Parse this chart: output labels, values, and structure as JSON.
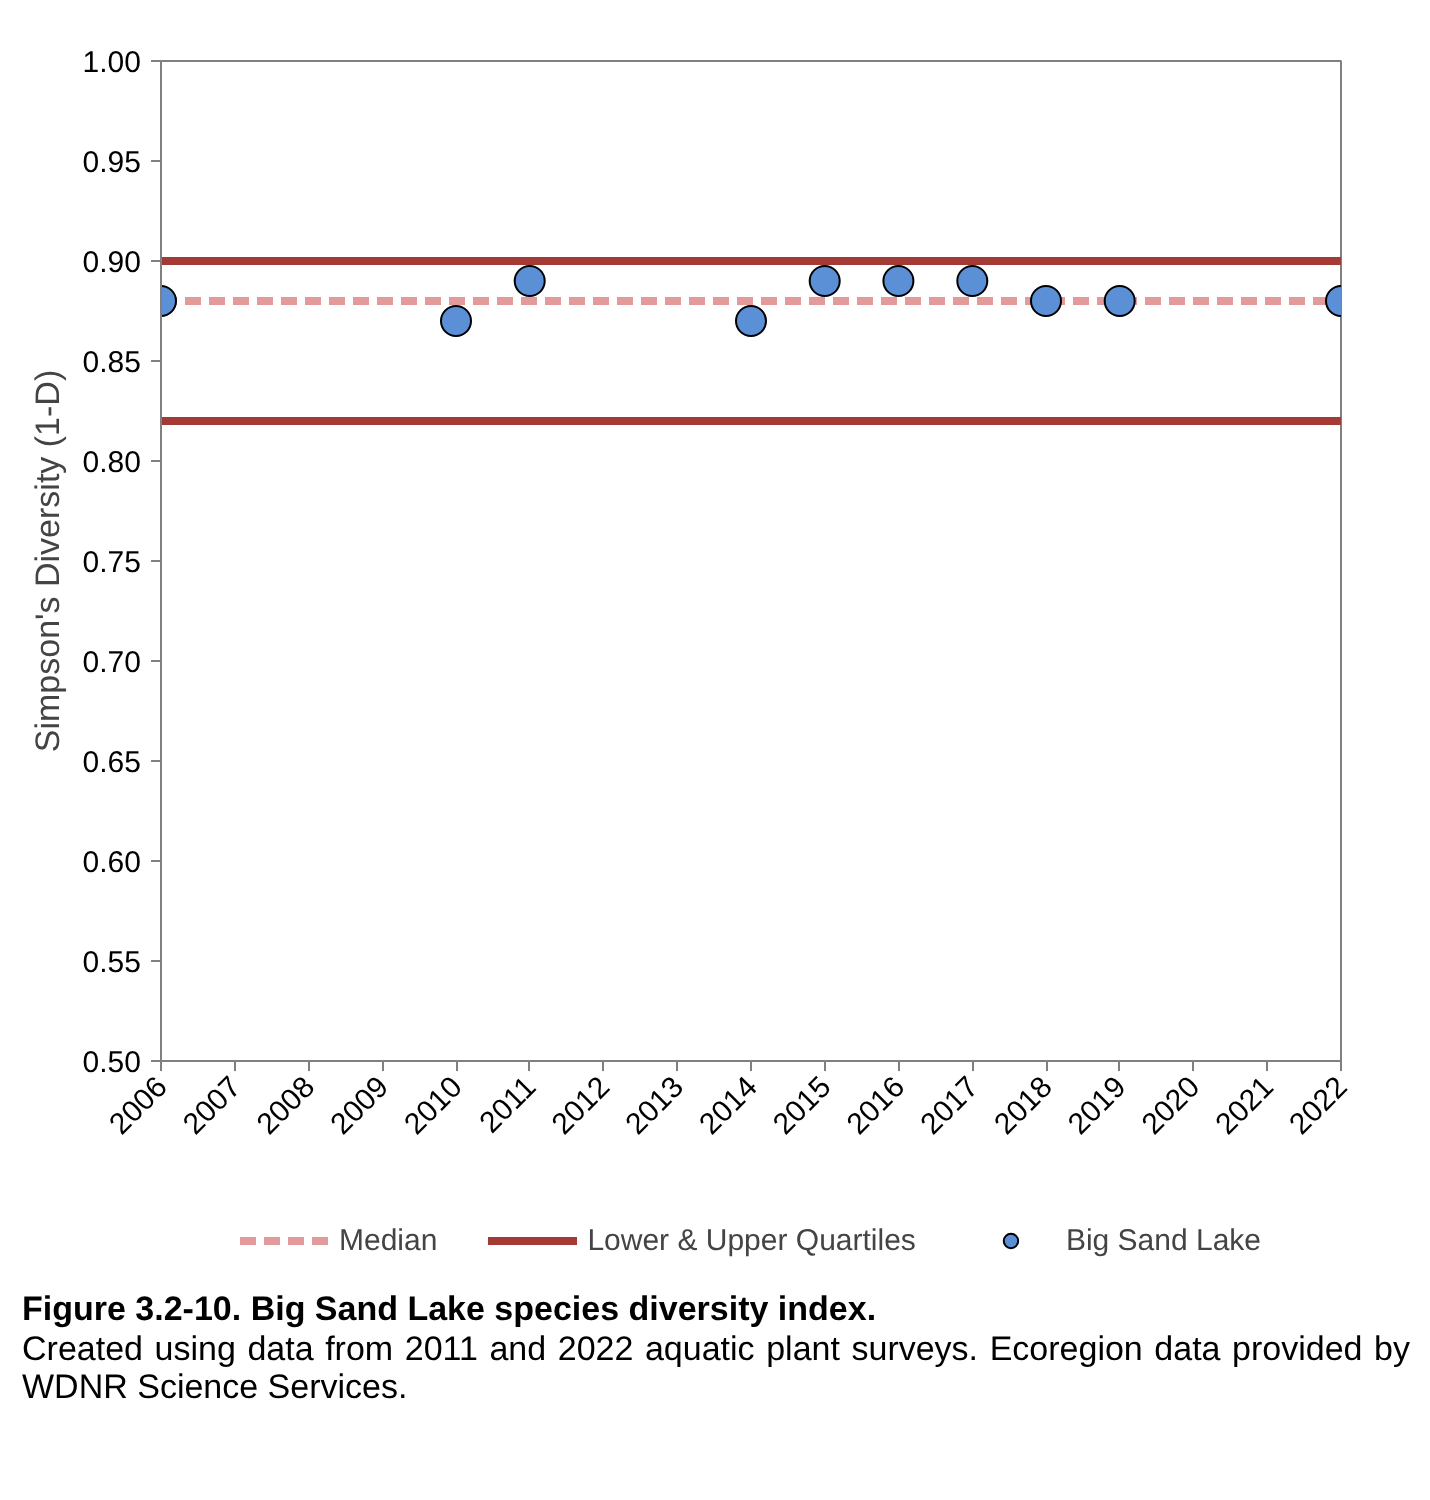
{
  "chart_data": {
    "type": "scatter",
    "title": "Figure 3.2-10.  Big Sand Lake species diversity index.",
    "ylabel": "Simpson's Diversity (1-D)",
    "series": [
      {
        "name": "Big Sand Lake",
        "color": "#5b8fd6",
        "x": [
          "2006",
          "2010",
          "2011",
          "2014",
          "2015",
          "2016",
          "2017",
          "2018",
          "2019",
          "2022"
        ],
        "values": [
          0.88,
          0.87,
          0.89,
          0.87,
          0.89,
          0.89,
          0.89,
          0.88,
          0.88,
          0.88
        ]
      }
    ],
    "ref_lines": [
      {
        "axis": "y",
        "value": 0.88,
        "label": "Median",
        "color": "#e39a9a",
        "line_style": "dashed"
      },
      {
        "axis": "y",
        "value": 0.82,
        "label": "Lower & Upper Quartiles",
        "color": "#a33a36",
        "line_style": "solid"
      },
      {
        "axis": "y",
        "value": 0.9,
        "color": "#a33a36",
        "line_style": "solid"
      }
    ],
    "xlim": [
      "2006",
      "2022"
    ],
    "xticks": [
      "2006",
      "2007",
      "2008",
      "2009",
      "2010",
      "2011",
      "2012",
      "2013",
      "2014",
      "2015",
      "2016",
      "2017",
      "2018",
      "2019",
      "2020",
      "2021",
      "2022"
    ],
    "ylim": [
      0.5,
      1.0
    ],
    "yticks": [
      {
        "value": 0.5,
        "label": "0.50"
      },
      {
        "value": 0.55,
        "label": "0.55"
      },
      {
        "value": 0.6,
        "label": "0.60"
      },
      {
        "value": 0.65,
        "label": "0.65"
      },
      {
        "value": 0.7,
        "label": "0.70"
      },
      {
        "value": 0.75,
        "label": "0.75"
      },
      {
        "value": 0.8,
        "label": "0.80"
      },
      {
        "value": 0.85,
        "label": "0.85"
      },
      {
        "value": 0.9,
        "label": "0.90"
      },
      {
        "value": 0.95,
        "label": "0.95"
      },
      {
        "value": 1.0,
        "label": "1.00"
      }
    ],
    "annotations": [
      "Created using data from 2011 and 2022 aquatic plant surveys.   Ecoregion data provided by WDNR Science Services."
    ],
    "marker": "circle",
    "grid": false,
    "legend": "bottom"
  }
}
